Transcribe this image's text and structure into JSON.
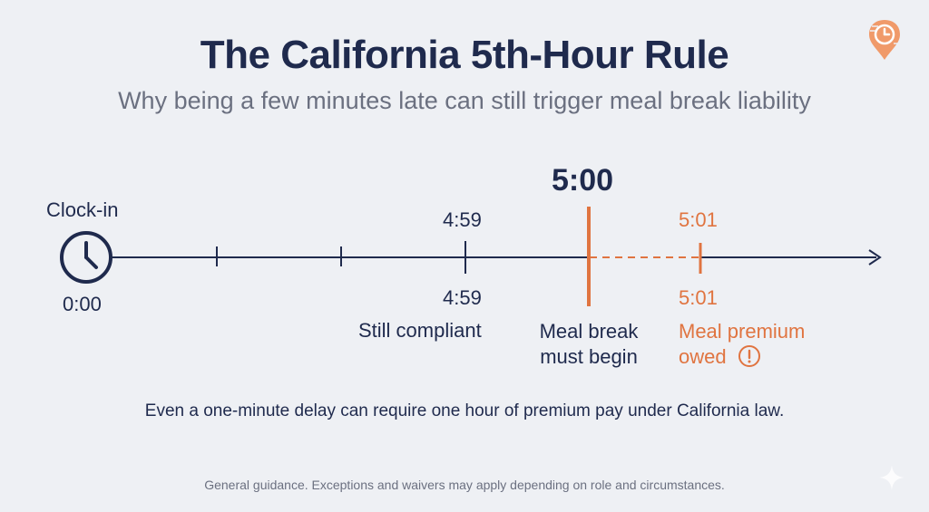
{
  "header": {
    "title": "The California 5th-Hour Rule",
    "subtitle": "Why being a few minutes late can still trigger meal break liability"
  },
  "timeline": {
    "clock_in_label": "Clock-in",
    "start_time": "0:00",
    "compliant_time_top": "4:59",
    "compliant_time_bottom": "4:59",
    "compliant_caption": "Still compliant",
    "deadline_time": "5:00",
    "deadline_caption_line1": "Meal break",
    "deadline_caption_line2": "must begin",
    "late_time_top": "5:01",
    "late_time_bottom": "5:01",
    "late_caption_line1": "Meal premium",
    "late_caption_line2": "owed"
  },
  "note": "Even a one-minute delay can require one hour of premium pay under California law.",
  "disclaimer": "General guidance. Exceptions and waivers may apply depending on role and circumstances.",
  "colors": {
    "navy": "#1f2a4d",
    "accent_orange": "#e07440",
    "muted_gray": "#6b7080",
    "background": "#eef0f4"
  },
  "icons": [
    "clock-icon",
    "logo-icon",
    "alert-icon",
    "sparkle-icon"
  ]
}
